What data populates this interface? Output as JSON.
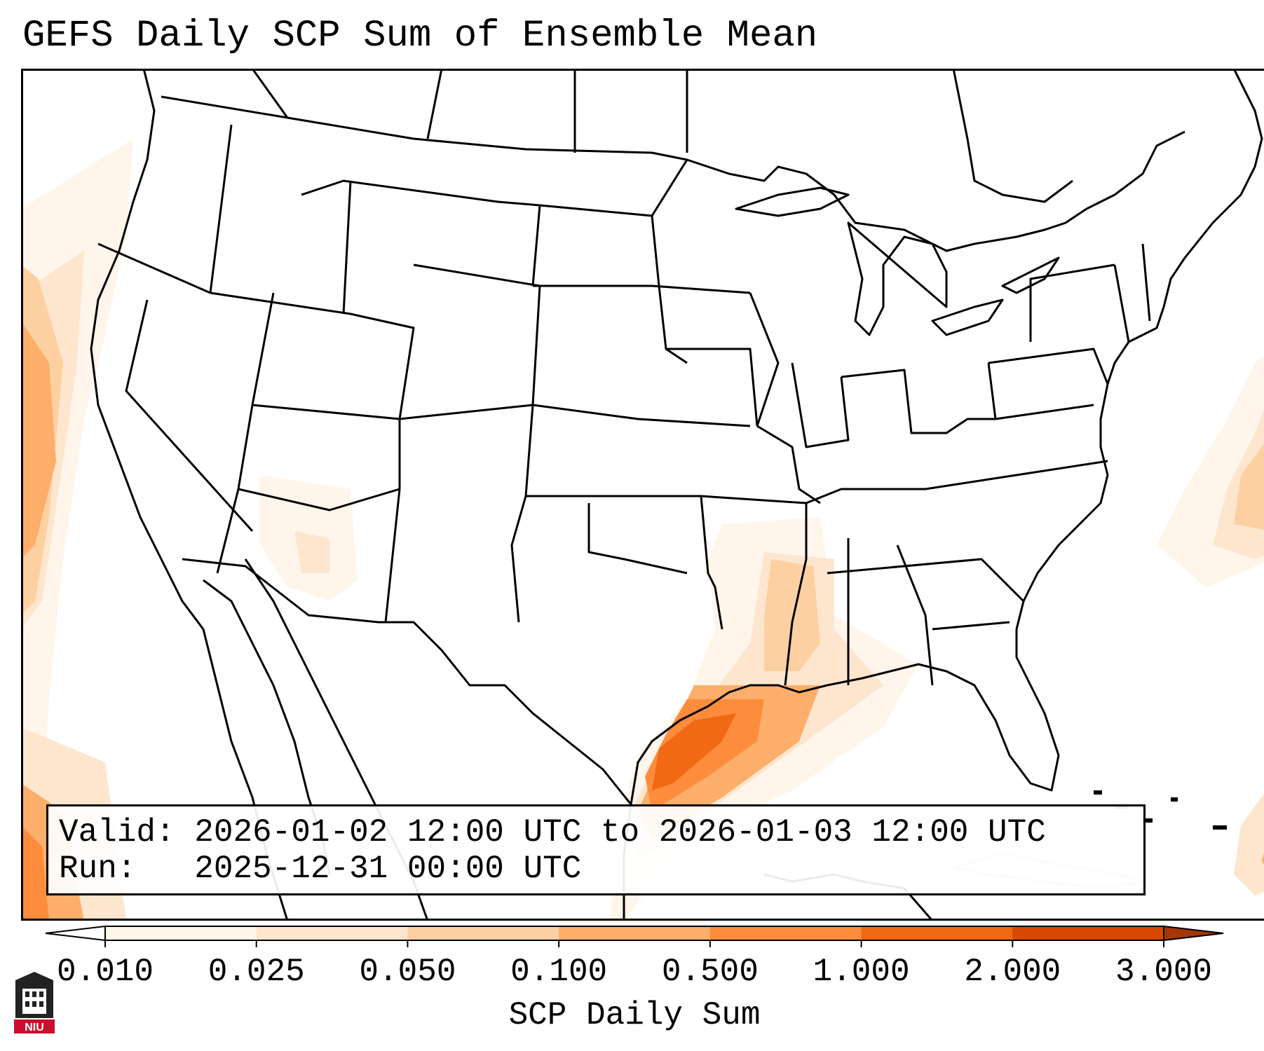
{
  "title": "GEFS Daily SCP Sum of Ensemble Mean",
  "info": {
    "valid_line": "Valid: 2026-01-02 12:00 UTC to 2026-01-03 12:00 UTC",
    "run_line": "Run:   2025-12-31 00:00 UTC"
  },
  "colorbar": {
    "label": "SCP Daily Sum",
    "ticks": [
      "0.010",
      "0.025",
      "0.050",
      "0.100",
      "0.500",
      "1.000",
      "2.000",
      "3.000"
    ],
    "colors": [
      "#fff5eb",
      "#fee6ce",
      "#fdd0a2",
      "#fdae6b",
      "#fd8d3c",
      "#f16913",
      "#d94801",
      "#a63603"
    ],
    "extend": "both"
  },
  "map": {
    "region": "Contiguous United States",
    "colors": {
      "boundary": "#000000",
      "ocean_faint_coast": "#d8d8d8",
      "background": "#ffffff"
    }
  },
  "logo": {
    "text": "NIU",
    "colors": {
      "primary": "#c8102e",
      "dark": "#222222"
    }
  }
}
